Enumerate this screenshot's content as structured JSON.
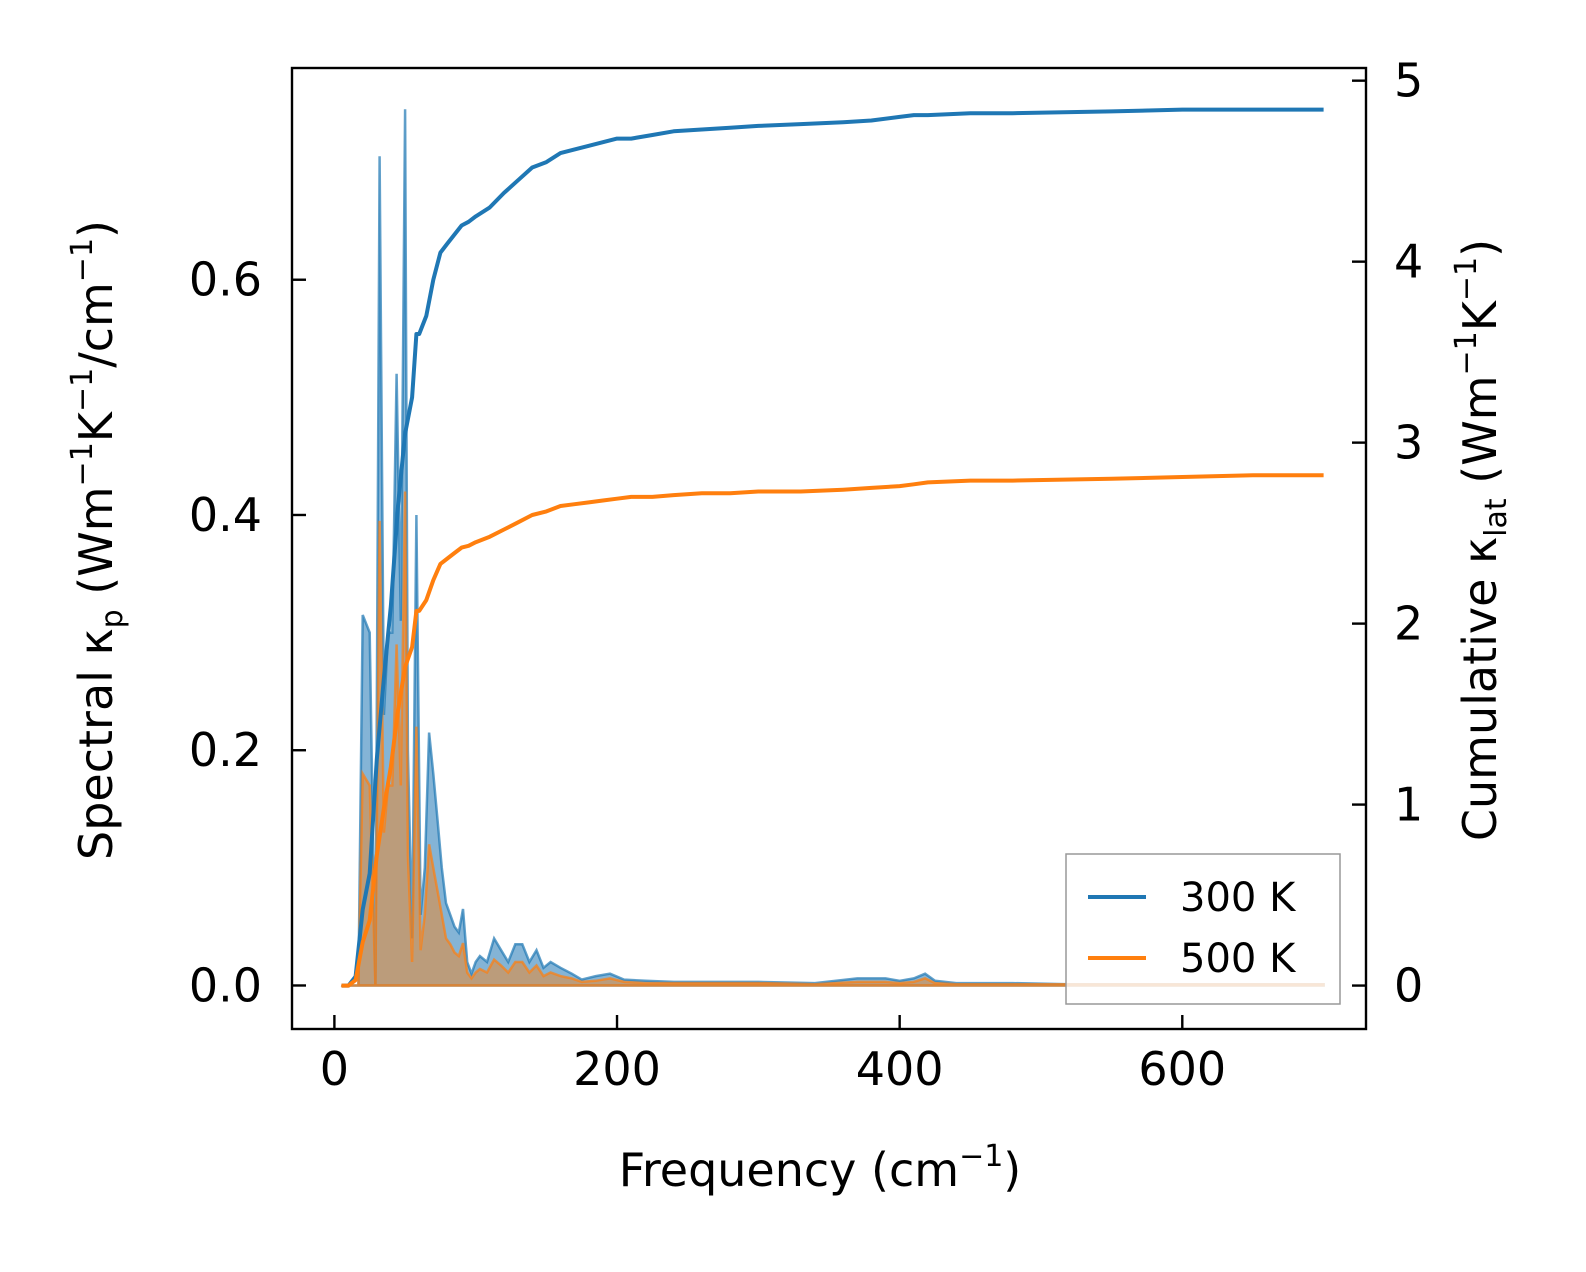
{
  "chart_data": {
    "type": "line",
    "xlabel": "Frequency (cm⁻¹)",
    "xlabel_parts": {
      "main": "Frequency (cm",
      "sup": "−1",
      "end": ")"
    },
    "ylabel_left": "Spectral κp (Wm⁻¹K⁻¹/cm⁻¹)",
    "ylabel_left_parts": {
      "a": "Spectral κ",
      "sub": "p",
      "b": " (Wm",
      "sup1": "−1",
      "c": "K",
      "sup2": "−1",
      "d": "/cm",
      "sup3": "−1",
      "e": ")"
    },
    "ylabel_right": "Cumulative κlat (Wm⁻¹K⁻¹)",
    "ylabel_right_parts": {
      "a": "Cumulative κ",
      "sub": "lat",
      "b": " (Wm",
      "sup1": "−1",
      "c": "K",
      "sup2": "−1",
      "e": ")"
    },
    "xlim": [
      -30,
      730
    ],
    "ylim_left": [
      -0.037,
      0.78
    ],
    "ylim_right": [
      -0.24,
      5.07
    ],
    "xticks": [
      0,
      200,
      400,
      600
    ],
    "xtick_labels": [
      "0",
      "200",
      "400",
      "600"
    ],
    "yticks_left": [
      0.0,
      0.2,
      0.4,
      0.6
    ],
    "ytick_labels_left": [
      "0.0",
      "0.2",
      "0.4",
      "0.6"
    ],
    "yticks_right": [
      0,
      1,
      2,
      3,
      4,
      5
    ],
    "ytick_labels_right": [
      "0",
      "1",
      "2",
      "3",
      "4",
      "5"
    ],
    "legend": {
      "position": "lower-right",
      "entries": [
        "300 K",
        "500 K"
      ]
    },
    "series": [
      {
        "name": "300 K",
        "color": "#1f77b4",
        "spectral": {
          "x": [
            5,
            12,
            17,
            20,
            25,
            29,
            32,
            35,
            38,
            41,
            44,
            47,
            50,
            52,
            55,
            58,
            61,
            64,
            67,
            70,
            73,
            76,
            79,
            82,
            85,
            88,
            91,
            94,
            97,
            100,
            103,
            108,
            113,
            118,
            123,
            128,
            133,
            138,
            143,
            148,
            153,
            160,
            168,
            175,
            185,
            195,
            205,
            220,
            240,
            260,
            300,
            340,
            370,
            390,
            400,
            410,
            418,
            425,
            440,
            460,
            480,
            520,
            560,
            600,
            650,
            700
          ],
          "y": [
            0,
            0,
            0,
            0.315,
            0.3,
            0,
            0.705,
            0.23,
            0.3,
            0.3,
            0.52,
            0.31,
            0.745,
            0.2,
            0.04,
            0.4,
            0.06,
            0.1,
            0.215,
            0.18,
            0.14,
            0.1,
            0.07,
            0.06,
            0.05,
            0.045,
            0.065,
            0.02,
            0.01,
            0.02,
            0.025,
            0.02,
            0.04,
            0.03,
            0.02,
            0.035,
            0.035,
            0.02,
            0.03,
            0.015,
            0.02,
            0.015,
            0.01,
            0.005,
            0.008,
            0.01,
            0.005,
            0.004,
            0.003,
            0.003,
            0.003,
            0.002,
            0.006,
            0.006,
            0.004,
            0.006,
            0.01,
            0.004,
            0.002,
            0.002,
            0.002,
            0.001,
            0.001,
            0.001,
            0.001,
            0.001
          ]
        },
        "cumulative": {
          "x": [
            5,
            10,
            15,
            20,
            25,
            30,
            35,
            40,
            45,
            50,
            55,
            58,
            60,
            65,
            70,
            75,
            80,
            85,
            90,
            95,
            100,
            110,
            120,
            130,
            140,
            150,
            160,
            170,
            180,
            190,
            200,
            210,
            225,
            240,
            260,
            280,
            300,
            330,
            360,
            380,
            400,
            410,
            420,
            450,
            480,
            550,
            600,
            650,
            700
          ],
          "y": [
            0,
            0,
            0.05,
            0.42,
            0.62,
            1.25,
            1.7,
            2.1,
            2.65,
            3.05,
            3.25,
            3.6,
            3.6,
            3.7,
            3.9,
            4.05,
            4.1,
            4.15,
            4.2,
            4.22,
            4.25,
            4.3,
            4.38,
            4.45,
            4.52,
            4.55,
            4.6,
            4.62,
            4.64,
            4.66,
            4.68,
            4.68,
            4.7,
            4.72,
            4.73,
            4.74,
            4.75,
            4.76,
            4.77,
            4.78,
            4.8,
            4.81,
            4.81,
            4.82,
            4.82,
            4.83,
            4.84,
            4.84,
            4.84
          ]
        }
      },
      {
        "name": "500 K",
        "color": "#ff7f0e",
        "spectral": {
          "x": [
            5,
            12,
            17,
            20,
            25,
            29,
            32,
            35,
            38,
            41,
            44,
            47,
            50,
            52,
            55,
            58,
            61,
            64,
            67,
            70,
            73,
            76,
            79,
            82,
            85,
            88,
            91,
            94,
            97,
            100,
            103,
            108,
            113,
            118,
            123,
            128,
            133,
            138,
            143,
            148,
            153,
            160,
            168,
            175,
            185,
            195,
            205,
            220,
            240,
            260,
            300,
            340,
            370,
            390,
            400,
            410,
            418,
            425,
            440,
            460,
            480,
            520,
            560,
            600,
            650,
            700
          ],
          "y": [
            0,
            0,
            0,
            0.18,
            0.17,
            0,
            0.395,
            0.13,
            0.17,
            0.17,
            0.29,
            0.17,
            0.42,
            0.11,
            0.02,
            0.22,
            0.03,
            0.06,
            0.12,
            0.1,
            0.08,
            0.06,
            0.04,
            0.035,
            0.028,
            0.025,
            0.036,
            0.011,
            0.006,
            0.011,
            0.014,
            0.011,
            0.022,
            0.017,
            0.011,
            0.02,
            0.02,
            0.011,
            0.017,
            0.008,
            0.011,
            0.008,
            0.006,
            0.003,
            0.004,
            0.006,
            0.003,
            0.002,
            0.002,
            0.002,
            0.002,
            0.001,
            0.003,
            0.003,
            0.002,
            0.003,
            0.006,
            0.002,
            0.001,
            0.001,
            0.001,
            0.001,
            0.001,
            0.001,
            0.001,
            0.001
          ]
        },
        "cumulative": {
          "x": [
            5,
            10,
            15,
            20,
            25,
            30,
            35,
            40,
            45,
            50,
            55,
            58,
            60,
            65,
            70,
            75,
            80,
            85,
            90,
            95,
            100,
            110,
            120,
            130,
            140,
            150,
            160,
            170,
            180,
            190,
            200,
            210,
            225,
            240,
            260,
            280,
            300,
            330,
            360,
            380,
            400,
            410,
            420,
            450,
            480,
            550,
            600,
            650,
            700
          ],
          "y": [
            0,
            0,
            0.03,
            0.24,
            0.36,
            0.72,
            0.98,
            1.21,
            1.52,
            1.76,
            1.87,
            2.07,
            2.07,
            2.13,
            2.24,
            2.33,
            2.36,
            2.39,
            2.42,
            2.43,
            2.45,
            2.48,
            2.52,
            2.56,
            2.6,
            2.62,
            2.65,
            2.66,
            2.67,
            2.68,
            2.69,
            2.7,
            2.7,
            2.71,
            2.72,
            2.72,
            2.73,
            2.73,
            2.74,
            2.75,
            2.76,
            2.77,
            2.78,
            2.79,
            2.79,
            2.8,
            2.81,
            2.82,
            2.82
          ]
        }
      }
    ]
  }
}
